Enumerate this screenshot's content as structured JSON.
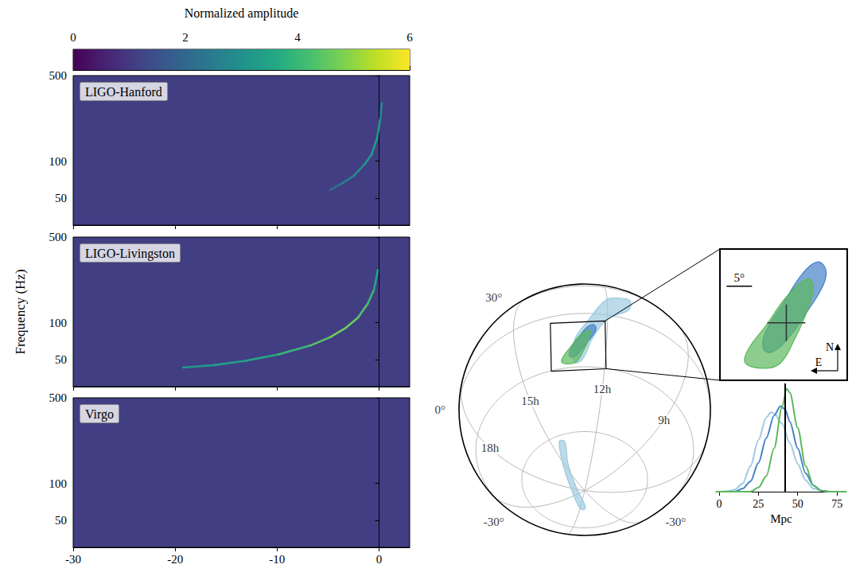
{
  "chart_data": [
    {
      "type": "colorbar",
      "label": "Normalized amplitude",
      "range": [
        0,
        6
      ],
      "ticks": [
        0,
        2,
        4,
        6
      ]
    },
    {
      "type": "spectrogram",
      "title": "LIGO-Hanford",
      "xlim": [
        -30,
        3
      ],
      "xticks": [
        -30,
        -20,
        -10,
        0
      ],
      "ylim": [
        30,
        500
      ],
      "yticks": [
        50,
        100,
        500
      ],
      "log": "y",
      "tick_labels": "y",
      "track": {
        "x": [
          -4.8,
          -3.63,
          -2.46,
          -1.44,
          -0.74,
          -0.2,
          0.11,
          0.27
        ],
        "frequency": [
          58,
          66,
          76,
          94,
          113,
          153,
          221,
          297
        ],
        "amplitude": [
          2,
          2.5,
          2.8,
          3,
          3.2,
          3.4,
          3,
          2.5
        ]
      }
    },
    {
      "type": "spectrogram",
      "title": "LIGO-Livingston",
      "ylabel": "Frequency (Hz)",
      "xlim": [
        -30,
        3
      ],
      "xticks": [
        -30,
        -20,
        -10,
        0
      ],
      "ylim": [
        30,
        500
      ],
      "yticks": [
        50,
        100,
        500
      ],
      "log": "y",
      "tick_labels": "y",
      "track": {
        "x": [
          -19.23,
          -16.11,
          -12.99,
          -9.87,
          -6.75,
          -4.8,
          -3.24,
          -2.07,
          -1.13,
          -0.51,
          -0.12
        ],
        "frequency": [
          43,
          45,
          49,
          55,
          65,
          76,
          91,
          110,
          142,
          185,
          269
        ],
        "amplitude": [
          3,
          3.3,
          3.5,
          3.8,
          4.2,
          4.6,
          4.8,
          4.5,
          4.2,
          3.8,
          3.2
        ]
      }
    },
    {
      "type": "spectrogram",
      "title": "Virgo",
      "xlim": [
        -30,
        3
      ],
      "xticks": [
        -30,
        -20,
        -10,
        0
      ],
      "ylim": [
        30,
        500
      ],
      "yticks": [
        50,
        100,
        500
      ],
      "log": "y",
      "track": {
        "x": [],
        "frequency": [],
        "amplitude": []
      }
    },
    {
      "type": "sky_map",
      "meridians_h": [
        0,
        3,
        6,
        {
          "value": 9,
          "label": "9h"
        },
        {
          "value": 12,
          "label": "12h"
        },
        {
          "value": 15,
          "label": "15h"
        },
        {
          "value": 18,
          "label": "18h"
        },
        21
      ],
      "parallels_deg": [
        -60,
        {
          "value": -30,
          "label": "-30°"
        },
        {
          "value": 0,
          "label": "0°"
        },
        {
          "value": 30,
          "label": "30°"
        }
      ],
      "regions": [
        {
          "color": "#9ecae1",
          "parts": [
            {
              "ra_h": [
                13.055,
                13.028,
                12.579,
                12.029,
                11.546,
                11.221,
                11.331,
                11.97,
                12.449,
                12.781
              ],
              "dec_deg": [
                -27.5,
                -16.4,
                -4.3,
                12.25,
                16.84,
                17.12,
                7.09,
                -2.11,
                -15.15,
                -26.48
              ]
            },
            {
              "ra_h": [
                14.437,
                15.168,
                18.41,
                0.14,
                0.827,
                16.9,
                14.603,
                14.077
              ],
              "dec_deg": [
                -62.56,
                -73.55,
                -83.88,
                -77.58,
                -78.9,
                -85.63,
                -73.85,
                -63.37
              ]
            }
          ]
        }
      ],
      "inset": {
        "regions": [
          {
            "color": "#4682c8",
            "parts": [
              {
                "ra_h": [
                  12.465,
                  12.356,
                  12.389,
                  12.607,
                  12.88,
                  13.098,
                  13.208,
                  13.175,
                  12.934,
                  12.662
                ],
                "dec_deg": [
                  -7.14,
                  -8.71,
                  -11.83,
                  -17.3,
                  -22.77,
                  -25.11,
                  -24.33,
                  -21.21,
                  -15.74,
                  -9.49
                ]
              }
            ]
          },
          {
            "color": "#5cb85c",
            "parts": [
              {
                "ra_h": [
                  12.607,
                  12.52,
                  12.585,
                  12.771,
                  12.956,
                  13.175,
                  13.48,
                  13.425,
                  13.153,
                  12.88
                ],
                "dec_deg": [
                  -10.58,
                  -11.83,
                  -16.52,
                  -22.77,
                  -27.14,
                  -28.24,
                  -27.14,
                  -24.33,
                  -19.64,
                  -14.18
                ]
              }
            ]
          }
        ],
        "cross": {
          "ra_h": 12.88,
          "dec_deg": -19.3
        },
        "scale_bar": {
          "value": 5,
          "label": "5°"
        },
        "north": "N",
        "east": "E"
      }
    },
    {
      "type": "line",
      "xlabel": "Mpc",
      "xlim": [
        -2,
        81
      ],
      "xticks": [
        0,
        25,
        50,
        75
      ],
      "ylim": [
        0,
        1.05
      ],
      "tick_labels": "x",
      "vertical_line": 42,
      "series": [
        {
          "color": "#9ecae1",
          "x": [
            -2,
            0,
            5,
            10,
            15,
            20,
            25,
            30,
            33,
            35,
            40,
            45,
            50,
            55,
            60,
            65,
            70,
            81
          ],
          "values": [
            0,
            0,
            0.005,
            0.02,
            0.08,
            0.25,
            0.5,
            0.72,
            0.77,
            0.76,
            0.66,
            0.47,
            0.27,
            0.11,
            0.03,
            0.01,
            0,
            0
          ]
        },
        {
          "color": "#4682c8",
          "x": [
            -2,
            0,
            10,
            15,
            20,
            25,
            30,
            35,
            39,
            42,
            45,
            50,
            55,
            60,
            65,
            70,
            81
          ],
          "values": [
            0,
            0,
            0,
            0.03,
            0.1,
            0.28,
            0.52,
            0.74,
            0.83,
            0.8,
            0.68,
            0.42,
            0.18,
            0.06,
            0.01,
            0,
            0
          ]
        },
        {
          "color": "#5cb85c",
          "x": [
            -2,
            0,
            20,
            25,
            30,
            35,
            40,
            43,
            45,
            50,
            55,
            60,
            65,
            70,
            81
          ],
          "values": [
            0,
            0,
            0,
            0.04,
            0.15,
            0.42,
            0.82,
            1.0,
            0.96,
            0.62,
            0.25,
            0.06,
            0.01,
            0,
            0
          ]
        }
      ]
    }
  ]
}
